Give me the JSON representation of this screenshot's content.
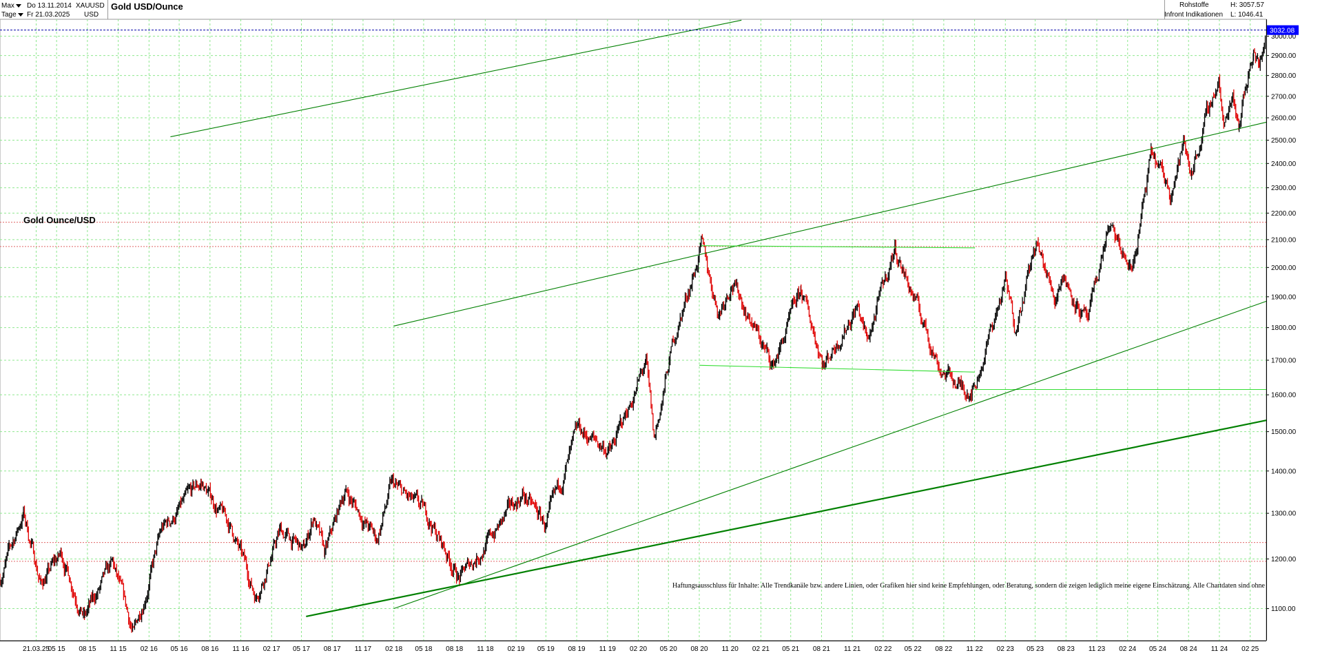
{
  "header": {
    "range_select": "Max",
    "interval_select": "Tage",
    "date_from": "Do 13.11.2014",
    "date_to": "Fr 21.03.2025",
    "symbol": "XAUUSD",
    "currency": "USD",
    "title": "Gold USD/Ounce",
    "category": "Rohstoffe",
    "source": "Infront Indikationen",
    "high_label": "H: 3057.57",
    "low_label": "L: 1046.41"
  },
  "chart_label": "Gold Ounce/USD",
  "last_price_tag": "3032.08",
  "disclaimer": "Haftungsausschluss für Inhalte: Alle Trendkanäle bzw. andere Linien, oder Grafiken hier sind keine Empfehlungen, oder Beratung, sondern die zeigen lediglich meine eigene Einschätzung. Alle Chartdaten sind ohne",
  "colors": {
    "up_candle": "#000000",
    "down_candle": "#e00000",
    "trendline": "#008000",
    "support_line": "#33dd33",
    "grid": "#8ee88e",
    "ref_line": "#e06666",
    "last_price_line": "#0000aa",
    "last_price_tag": "#0000ff"
  },
  "chart_data": {
    "type": "candlestick",
    "title": "Gold USD/Ounce",
    "y_scale": "log",
    "y_range": [
      1040,
      3090
    ],
    "y_ticks": [
      1100,
      1200,
      1300,
      1400,
      1500,
      1600,
      1700,
      1800,
      1900,
      2000,
      2100,
      2200,
      2300,
      2400,
      2500,
      2600,
      2700,
      2800,
      2900,
      3000
    ],
    "x_range": [
      "2014-11-13",
      "2025-03-21"
    ],
    "x_ticks": [
      {
        "label": "21.03.25",
        "date": "2015-03-01"
      },
      {
        "label": "05 15",
        "date": "2015-05-01"
      },
      {
        "label": "08 15",
        "date": "2015-08-01"
      },
      {
        "label": "11 15",
        "date": "2015-11-01"
      },
      {
        "label": "02 16",
        "date": "2016-02-01"
      },
      {
        "label": "05 16",
        "date": "2016-05-01"
      },
      {
        "label": "08 16",
        "date": "2016-08-01"
      },
      {
        "label": "11 16",
        "date": "2016-11-01"
      },
      {
        "label": "02 17",
        "date": "2017-02-01"
      },
      {
        "label": "05 17",
        "date": "2017-05-01"
      },
      {
        "label": "08 17",
        "date": "2017-08-01"
      },
      {
        "label": "11 17",
        "date": "2017-11-01"
      },
      {
        "label": "02 18",
        "date": "2018-02-01"
      },
      {
        "label": "05 18",
        "date": "2018-05-01"
      },
      {
        "label": "08 18",
        "date": "2018-08-01"
      },
      {
        "label": "11 18",
        "date": "2018-11-01"
      },
      {
        "label": "02 19",
        "date": "2019-02-01"
      },
      {
        "label": "05 19",
        "date": "2019-05-01"
      },
      {
        "label": "08 19",
        "date": "2019-08-01"
      },
      {
        "label": "11 19",
        "date": "2019-11-01"
      },
      {
        "label": "02 20",
        "date": "2020-02-01"
      },
      {
        "label": "05 20",
        "date": "2020-05-01"
      },
      {
        "label": "08 20",
        "date": "2020-08-01"
      },
      {
        "label": "11 20",
        "date": "2020-11-01"
      },
      {
        "label": "02 21",
        "date": "2021-02-01"
      },
      {
        "label": "05 21",
        "date": "2021-05-01"
      },
      {
        "label": "08 21",
        "date": "2021-08-01"
      },
      {
        "label": "11 21",
        "date": "2021-11-01"
      },
      {
        "label": "02 22",
        "date": "2022-02-01"
      },
      {
        "label": "05 22",
        "date": "2022-05-01"
      },
      {
        "label": "08 22",
        "date": "2022-08-01"
      },
      {
        "label": "11 22",
        "date": "2022-11-01"
      },
      {
        "label": "02 23",
        "date": "2023-02-01"
      },
      {
        "label": "05 23",
        "date": "2023-05-01"
      },
      {
        "label": "08 23",
        "date": "2023-08-01"
      },
      {
        "label": "11 23",
        "date": "2023-11-01"
      },
      {
        "label": "02 24",
        "date": "2024-02-01"
      },
      {
        "label": "05 24",
        "date": "2024-05-01"
      },
      {
        "label": "08 24",
        "date": "2024-08-01"
      },
      {
        "label": "11 24",
        "date": "2024-11-01"
      },
      {
        "label": "02 25",
        "date": "2025-02-01"
      }
    ],
    "price_path": [
      [
        "2014-11-13",
        1160
      ],
      [
        "2015-01-22",
        1300
      ],
      [
        "2015-03-15",
        1150
      ],
      [
        "2015-05-15",
        1210
      ],
      [
        "2015-07-24",
        1085
      ],
      [
        "2015-10-15",
        1185
      ],
      [
        "2015-12-17",
        1050
      ],
      [
        "2016-03-10",
        1260
      ],
      [
        "2016-07-06",
        1370
      ],
      [
        "2016-10-04",
        1265
      ],
      [
        "2016-12-15",
        1125
      ],
      [
        "2017-02-27",
        1260
      ],
      [
        "2017-05-09",
        1215
      ],
      [
        "2017-06-06",
        1295
      ],
      [
        "2017-07-10",
        1205
      ],
      [
        "2017-09-08",
        1355
      ],
      [
        "2017-12-12",
        1240
      ],
      [
        "2018-01-25",
        1365
      ],
      [
        "2018-05-15",
        1290
      ],
      [
        "2018-08-16",
        1160
      ],
      [
        "2018-11-01",
        1230
      ],
      [
        "2019-02-20",
        1345
      ],
      [
        "2019-05-02",
        1270
      ],
      [
        "2019-08-07",
        1500
      ],
      [
        "2019-11-12",
        1450
      ],
      [
        "2020-02-24",
        1690
      ],
      [
        "2020-03-19",
        1470
      ],
      [
        "2020-05-15",
        1755
      ],
      [
        "2020-08-07",
        2075
      ],
      [
        "2020-09-28",
        1850
      ],
      [
        "2020-11-06",
        1960
      ],
      [
        "2021-03-08",
        1680
      ],
      [
        "2021-06-01",
        1915
      ],
      [
        "2021-08-09",
        1690
      ],
      [
        "2021-11-16",
        1875
      ],
      [
        "2021-12-15",
        1755
      ],
      [
        "2022-03-08",
        2070
      ],
      [
        "2022-07-21",
        1680
      ],
      [
        "2022-09-28",
        1615
      ],
      [
        "2022-11-03",
        1630
      ],
      [
        "2023-02-01",
        1950
      ],
      [
        "2023-02-28",
        1805
      ],
      [
        "2023-05-04",
        2080
      ],
      [
        "2023-06-29",
        1895
      ],
      [
        "2023-07-20",
        1985
      ],
      [
        "2023-10-06",
        1810
      ],
      [
        "2023-12-04",
        2145
      ],
      [
        "2024-02-14",
        1985
      ],
      [
        "2024-04-12",
        2430
      ],
      [
        "2024-06-07",
        2290
      ],
      [
        "2024-07-17",
        2480
      ],
      [
        "2024-08-07",
        2365
      ],
      [
        "2024-10-30",
        2790
      ],
      [
        "2024-11-14",
        2540
      ],
      [
        "2024-12-11",
        2725
      ],
      [
        "2024-12-30",
        2590
      ],
      [
        "2025-02-11",
        2945
      ],
      [
        "2025-02-28",
        2835
      ],
      [
        "2025-03-21",
        3032
      ]
    ],
    "annotations": {
      "last_price": 3032.08,
      "high": 3057.57,
      "low": 1046.41,
      "reference_levels": [
        2165,
        2075,
        1235,
        1195
      ],
      "support_levels": [
        1615
      ],
      "trendlines": [
        {
          "from": [
            "2017-05-15",
            1085
          ],
          "to": [
            "2025-03-21",
            1530
          ],
          "style": "bold"
        },
        {
          "from": [
            "2018-02-01",
            1100
          ],
          "to": [
            "2025-03-21",
            1885
          ],
          "style": "thin"
        },
        {
          "from": [
            "2018-02-01",
            1805
          ],
          "to": [
            "2025-03-21",
            2580
          ],
          "style": "thin"
        },
        {
          "from": [
            "2016-04-05",
            2515
          ],
          "to": [
            "2020-12-05",
            3085
          ],
          "style": "thin"
        },
        {
          "from": [
            "2020-08-07",
            2078
          ],
          "to": [
            "2022-11-01",
            2070
          ],
          "style": "light"
        },
        {
          "from": [
            "2020-08-01",
            1685
          ],
          "to": [
            "2022-11-01",
            1665
          ],
          "style": "light"
        }
      ]
    }
  }
}
